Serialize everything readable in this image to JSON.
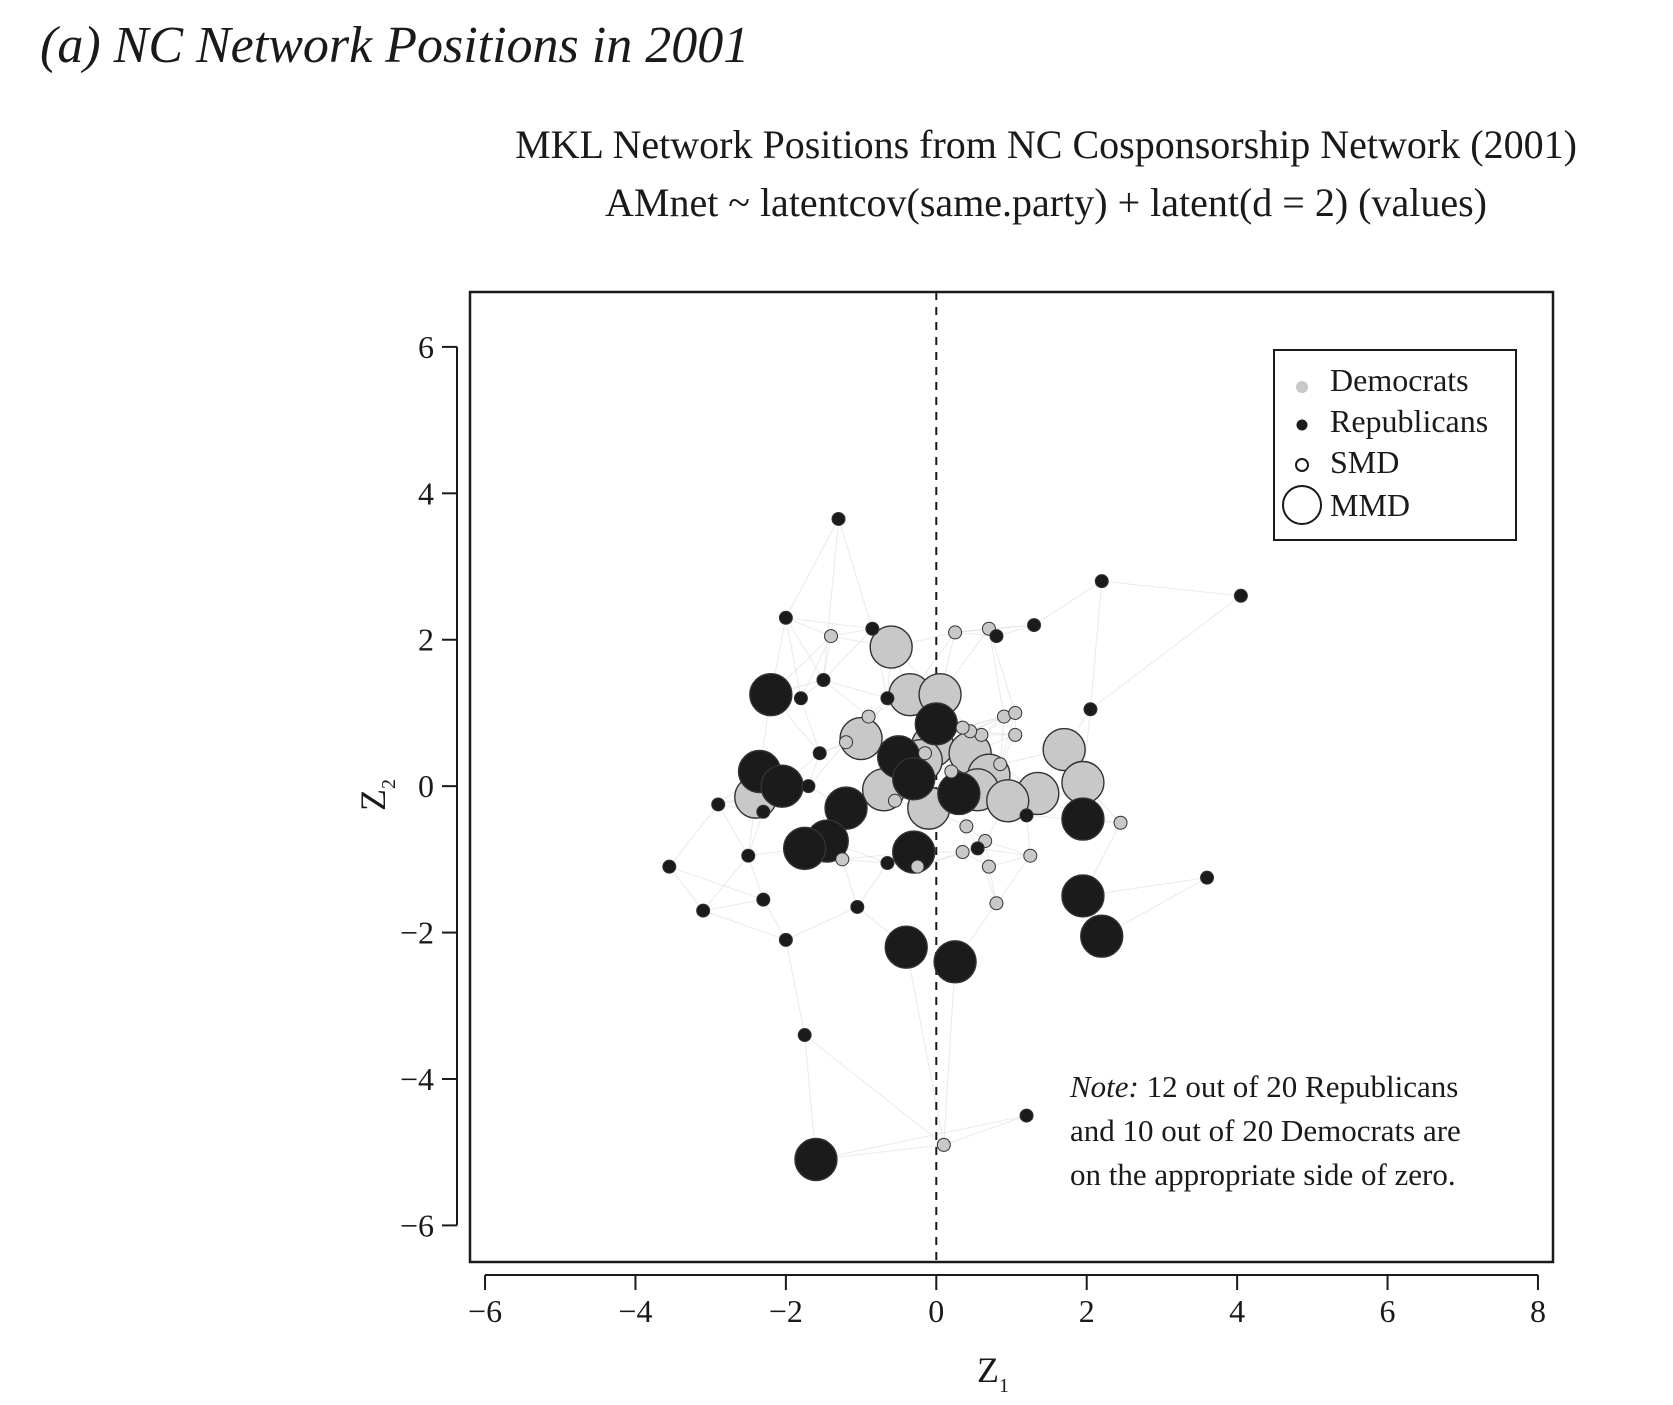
{
  "panel_label": "(a) NC Network Positions in 2001",
  "chart_data": {
    "type": "scatter",
    "title": "MKL Network Positions from NC Cosponsorship Network (2001)",
    "subtitle": "AMnet ~ latentcov(same.party) + latent(d = 2) (values)",
    "xlabel": "Z",
    "xlabel_sub": "1",
    "ylabel": "Z",
    "ylabel_sub": "2",
    "xlim": [
      -6.2,
      8.2
    ],
    "ylim": [
      -6.5,
      6.75
    ],
    "x_ticks": [
      -6,
      -4,
      -2,
      0,
      2,
      4,
      6,
      8
    ],
    "y_ticks": [
      -6,
      -4,
      -2,
      0,
      2,
      4,
      6
    ],
    "x_tick_labels": [
      "−6",
      "−4",
      "−2",
      "0",
      "2",
      "4",
      "6",
      "8"
    ],
    "y_tick_labels": [
      "−6",
      "−4",
      "−2",
      "0",
      "2",
      "4",
      "6"
    ],
    "reference_line": {
      "x": 0,
      "style": "dashed"
    },
    "grid": false,
    "legend": {
      "position": "top-right",
      "entries": [
        {
          "label": "Democrats",
          "marker": "filled-small-gray"
        },
        {
          "label": "Republicans",
          "marker": "filled-small-black"
        },
        {
          "label": "SMD",
          "marker": "open-small"
        },
        {
          "label": "MMD",
          "marker": "open-large"
        }
      ]
    },
    "note": {
      "position": "bottom-right",
      "lead": "Note:",
      "lines": [
        "12 out of 20 Republicans",
        "and 10 out of 20 Democrats are",
        "on the appropriate side of zero."
      ]
    },
    "colors": {
      "democrat": "#c8c8c8",
      "republican": "#1b1b1b",
      "outline": "#333333",
      "edge": "#d9d9d9"
    },
    "series": [
      {
        "name": "Democrats",
        "points": [
          {
            "x": -1.4,
            "y": 2.05,
            "district": "SMD"
          },
          {
            "x": -0.6,
            "y": 1.9,
            "district": "MMD"
          },
          {
            "x": 0.25,
            "y": 2.1,
            "district": "SMD"
          },
          {
            "x": 0.7,
            "y": 2.15,
            "district": "SMD"
          },
          {
            "x": -0.35,
            "y": 1.25,
            "district": "MMD"
          },
          {
            "x": 0.05,
            "y": 1.25,
            "district": "MMD"
          },
          {
            "x": 0.9,
            "y": 0.95,
            "district": "SMD"
          },
          {
            "x": 1.05,
            "y": 1.0,
            "district": "SMD"
          },
          {
            "x": 0.6,
            "y": 0.7,
            "district": "SMD"
          },
          {
            "x": 1.05,
            "y": 0.7,
            "district": "SMD"
          },
          {
            "x": -1.0,
            "y": 0.65,
            "district": "MMD"
          },
          {
            "x": -0.9,
            "y": 0.95,
            "district": "SMD"
          },
          {
            "x": -1.2,
            "y": 0.6,
            "district": "SMD"
          },
          {
            "x": -0.05,
            "y": 0.55,
            "district": "MMD"
          },
          {
            "x": 0.45,
            "y": 0.45,
            "district": "MMD"
          },
          {
            "x": 1.7,
            "y": 0.5,
            "district": "MMD"
          },
          {
            "x": -0.45,
            "y": 0.3,
            "district": "MMD"
          },
          {
            "x": -0.2,
            "y": 0.35,
            "district": "MMD"
          },
          {
            "x": 0.7,
            "y": 0.15,
            "district": "MMD"
          },
          {
            "x": 1.35,
            "y": -0.1,
            "district": "MMD"
          },
          {
            "x": 1.95,
            "y": 0.05,
            "district": "MMD"
          },
          {
            "x": 0.55,
            "y": -0.05,
            "district": "MMD"
          },
          {
            "x": -0.7,
            "y": -0.05,
            "district": "MMD"
          },
          {
            "x": 0.95,
            "y": -0.2,
            "district": "MMD"
          },
          {
            "x": -2.4,
            "y": -0.15,
            "district": "MMD"
          },
          {
            "x": -0.1,
            "y": -0.3,
            "district": "MMD"
          },
          {
            "x": -0.55,
            "y": -0.2,
            "district": "SMD"
          },
          {
            "x": 0.2,
            "y": 0.2,
            "district": "SMD"
          },
          {
            "x": -0.15,
            "y": 0.45,
            "district": "SMD"
          },
          {
            "x": 0.45,
            "y": 0.75,
            "district": "SMD"
          },
          {
            "x": 0.35,
            "y": 0.8,
            "district": "SMD"
          },
          {
            "x": 0.85,
            "y": 0.3,
            "district": "SMD"
          },
          {
            "x": 2.45,
            "y": -0.5,
            "district": "SMD"
          },
          {
            "x": 0.4,
            "y": -0.55,
            "district": "SMD"
          },
          {
            "x": 0.65,
            "y": -0.75,
            "district": "SMD"
          },
          {
            "x": 0.35,
            "y": -0.9,
            "district": "SMD"
          },
          {
            "x": 1.25,
            "y": -0.95,
            "district": "SMD"
          },
          {
            "x": 0.7,
            "y": -1.1,
            "district": "SMD"
          },
          {
            "x": -1.25,
            "y": -1.0,
            "district": "SMD"
          },
          {
            "x": -0.25,
            "y": -1.1,
            "district": "SMD"
          },
          {
            "x": 0.8,
            "y": -1.6,
            "district": "SMD"
          },
          {
            "x": 0.1,
            "y": -4.9,
            "district": "SMD"
          }
        ]
      },
      {
        "name": "Republicans",
        "points": [
          {
            "x": -1.3,
            "y": 3.65,
            "district": "SMD"
          },
          {
            "x": -2.0,
            "y": 2.3,
            "district": "SMD"
          },
          {
            "x": -0.85,
            "y": 2.15,
            "district": "SMD"
          },
          {
            "x": 0.8,
            "y": 2.05,
            "district": "SMD"
          },
          {
            "x": 1.3,
            "y": 2.2,
            "district": "SMD"
          },
          {
            "x": 2.2,
            "y": 2.8,
            "district": "SMD"
          },
          {
            "x": 4.05,
            "y": 2.6,
            "district": "SMD"
          },
          {
            "x": -2.2,
            "y": 1.25,
            "district": "MMD"
          },
          {
            "x": -1.8,
            "y": 1.2,
            "district": "SMD"
          },
          {
            "x": -1.5,
            "y": 1.45,
            "district": "SMD"
          },
          {
            "x": -0.65,
            "y": 1.2,
            "district": "SMD"
          },
          {
            "x": 0.0,
            "y": 0.85,
            "district": "MMD"
          },
          {
            "x": 2.05,
            "y": 1.05,
            "district": "SMD"
          },
          {
            "x": -1.55,
            "y": 0.45,
            "district": "SMD"
          },
          {
            "x": -0.5,
            "y": 0.4,
            "district": "MMD"
          },
          {
            "x": -2.35,
            "y": 0.2,
            "district": "MMD"
          },
          {
            "x": -2.05,
            "y": 0.0,
            "district": "MMD"
          },
          {
            "x": -1.7,
            "y": 0.0,
            "district": "SMD"
          },
          {
            "x": -0.3,
            "y": 0.1,
            "district": "MMD"
          },
          {
            "x": 0.3,
            "y": -0.1,
            "district": "MMD"
          },
          {
            "x": -2.9,
            "y": -0.25,
            "district": "SMD"
          },
          {
            "x": -2.3,
            "y": -0.35,
            "district": "SMD"
          },
          {
            "x": -1.2,
            "y": -0.3,
            "district": "MMD"
          },
          {
            "x": 1.2,
            "y": -0.4,
            "district": "SMD"
          },
          {
            "x": 1.95,
            "y": -0.45,
            "district": "MMD"
          },
          {
            "x": -1.45,
            "y": -0.75,
            "district": "MMD"
          },
          {
            "x": -1.75,
            "y": -0.85,
            "district": "MMD"
          },
          {
            "x": -0.3,
            "y": -0.9,
            "district": "MMD"
          },
          {
            "x": -2.5,
            "y": -0.95,
            "district": "SMD"
          },
          {
            "x": 0.55,
            "y": -0.85,
            "district": "SMD"
          },
          {
            "x": -0.65,
            "y": -1.05,
            "district": "SMD"
          },
          {
            "x": -3.55,
            "y": -1.1,
            "district": "SMD"
          },
          {
            "x": 3.6,
            "y": -1.25,
            "district": "SMD"
          },
          {
            "x": -2.3,
            "y": -1.55,
            "district": "SMD"
          },
          {
            "x": -1.05,
            "y": -1.65,
            "district": "SMD"
          },
          {
            "x": -3.1,
            "y": -1.7,
            "district": "SMD"
          },
          {
            "x": 1.95,
            "y": -1.5,
            "district": "MMD"
          },
          {
            "x": -2.0,
            "y": -2.1,
            "district": "SMD"
          },
          {
            "x": 2.2,
            "y": -2.05,
            "district": "MMD"
          },
          {
            "x": -0.4,
            "y": -2.2,
            "district": "MMD"
          },
          {
            "x": 0.25,
            "y": -2.4,
            "district": "MMD"
          },
          {
            "x": -1.75,
            "y": -3.4,
            "district": "SMD"
          },
          {
            "x": 1.2,
            "y": -4.5,
            "district": "SMD"
          },
          {
            "x": -1.6,
            "y": -5.1,
            "district": "MMD"
          }
        ]
      }
    ]
  }
}
